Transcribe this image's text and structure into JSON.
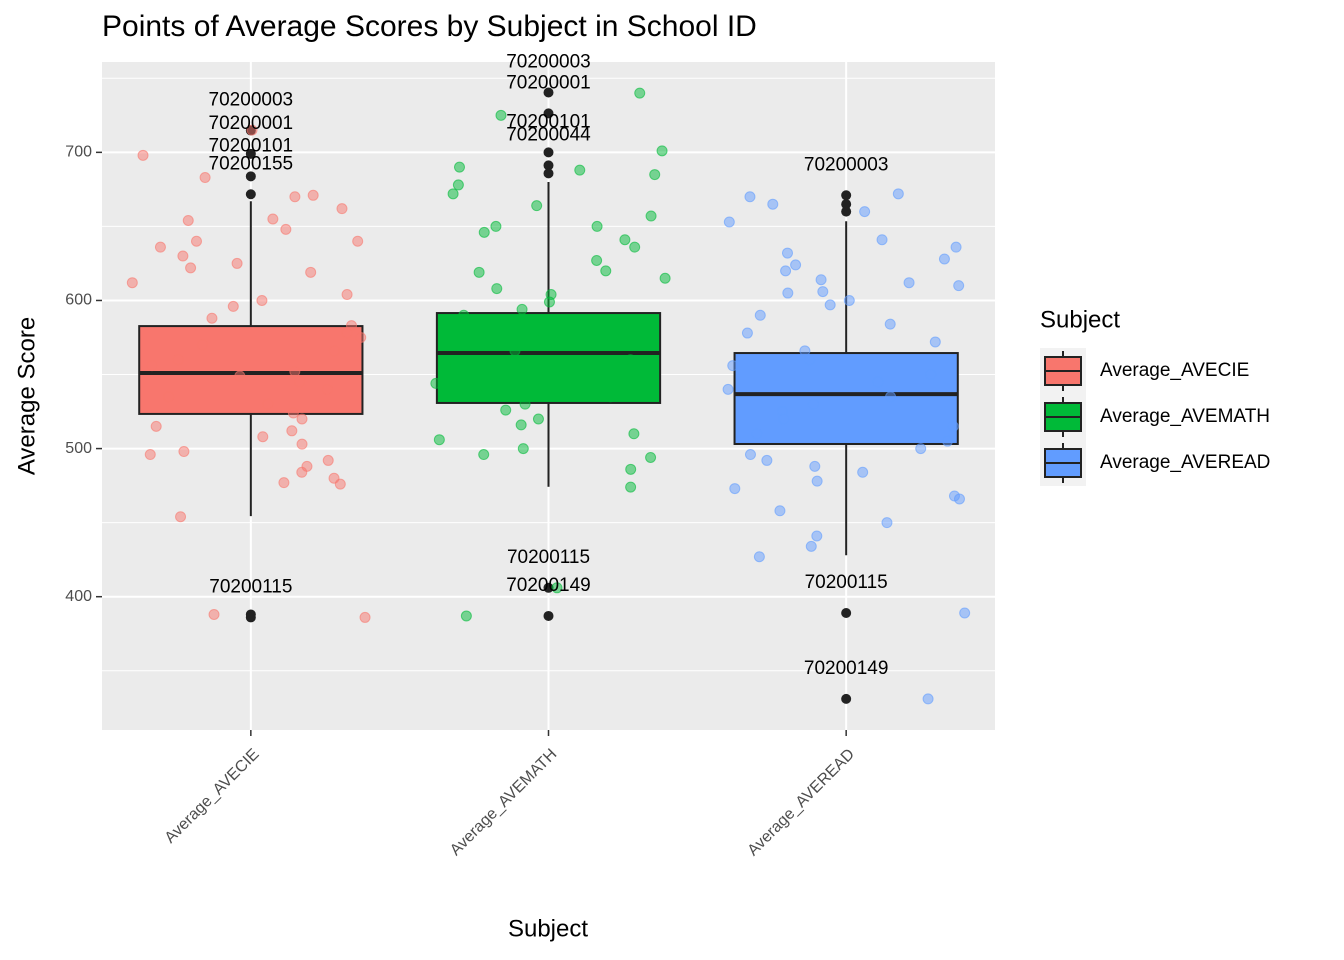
{
  "chart_data": {
    "type": "boxplot",
    "title": "Points of Average Scores by Subject in School ID",
    "x_label": "Subject",
    "y_label": "Average Score",
    "legend_title": "Subject",
    "categories": [
      "Average_AVECIE",
      "Average_AVEMATH",
      "Average_AVEREAD"
    ],
    "colors": [
      "#F8766D",
      "#00BA38",
      "#619CFF"
    ],
    "ylim": [
      310,
      761
    ],
    "yticks": [
      400,
      500,
      600,
      700
    ],
    "minor_yticks": [
      350,
      450,
      550,
      650,
      750
    ],
    "grid": true,
    "boxes": [
      {
        "q1": 523.4,
        "median": 551,
        "q3": 582.7,
        "whisker_low": 454.4,
        "whisker_high": 667,
        "outliers": [
          714.8,
          699,
          683.8,
          671.7,
          388,
          386
        ],
        "outlier_labels": [
          {
            "label": "70200003",
            "value": 714.8
          },
          {
            "label": "70200001",
            "value": 699
          },
          {
            "label": "70200101",
            "value": 683.8
          },
          {
            "label": "70200155",
            "value": 671.7
          },
          {
            "label": "70200115",
            "value": 386
          }
        ],
        "points": [
          698,
          715,
          671,
          670,
          662,
          655,
          654,
          648,
          640,
          636,
          630,
          622,
          619,
          612,
          604,
          600,
          596,
          588,
          583,
          578,
          575,
          570,
          566,
          560,
          556,
          552,
          549,
          545,
          540,
          535,
          530,
          524,
          520,
          515,
          512,
          508,
          503,
          498,
          496,
          492,
          488,
          484,
          480,
          477,
          476,
          454,
          388,
          386,
          683,
          640,
          625
        ]
      },
      {
        "q1": 530.8,
        "median": 564.5,
        "q3": 591.5,
        "whisker_low": 474.2,
        "whisker_high": 680,
        "outliers": [
          740.4,
          726.3,
          700,
          691.2,
          685.8,
          406,
          387
        ],
        "outlier_labels": [
          {
            "label": "70200003",
            "value": 740.4
          },
          {
            "label": "70200001",
            "value": 726.3
          },
          {
            "label": "70200101",
            "value": 700
          },
          {
            "label": "70200044",
            "value": 691.2
          },
          {
            "label": "70200115",
            "value": 406
          },
          {
            "label": "70200149",
            "value": 387
          }
        ],
        "points": [
          740,
          725,
          701,
          688,
          685,
          678,
          672,
          664,
          657,
          650,
          646,
          641,
          636,
          627,
          619,
          615,
          608,
          604,
          599,
          594,
          590,
          584,
          578,
          572,
          566,
          560,
          555,
          549,
          544,
          540,
          535,
          530,
          526,
          520,
          516,
          510,
          506,
          500,
          496,
          494,
          486,
          474,
          406,
          387,
          690,
          650,
          620
        ]
      },
      {
        "q1": 503.1,
        "median": 536.8,
        "q3": 564.5,
        "whisker_low": 428,
        "whisker_high": 653.5,
        "outliers": [
          671,
          665,
          660,
          389,
          331
        ],
        "outlier_labels": [
          {
            "label": "70200003",
            "value": 671
          },
          {
            "label": "70200115",
            "value": 389
          },
          {
            "label": "70200149",
            "value": 331
          }
        ],
        "points": [
          672,
          670,
          665,
          660,
          653,
          641,
          636,
          632,
          628,
          624,
          620,
          614,
          610,
          606,
          600,
          597,
          590,
          584,
          578,
          572,
          566,
          560,
          556,
          550,
          545,
          540,
          535,
          530,
          525,
          520,
          515,
          510,
          505,
          500,
          496,
          492,
          488,
          484,
          478,
          473,
          468,
          466,
          458,
          450,
          441,
          434,
          427,
          389,
          331,
          612,
          605
        ]
      }
    ]
  }
}
